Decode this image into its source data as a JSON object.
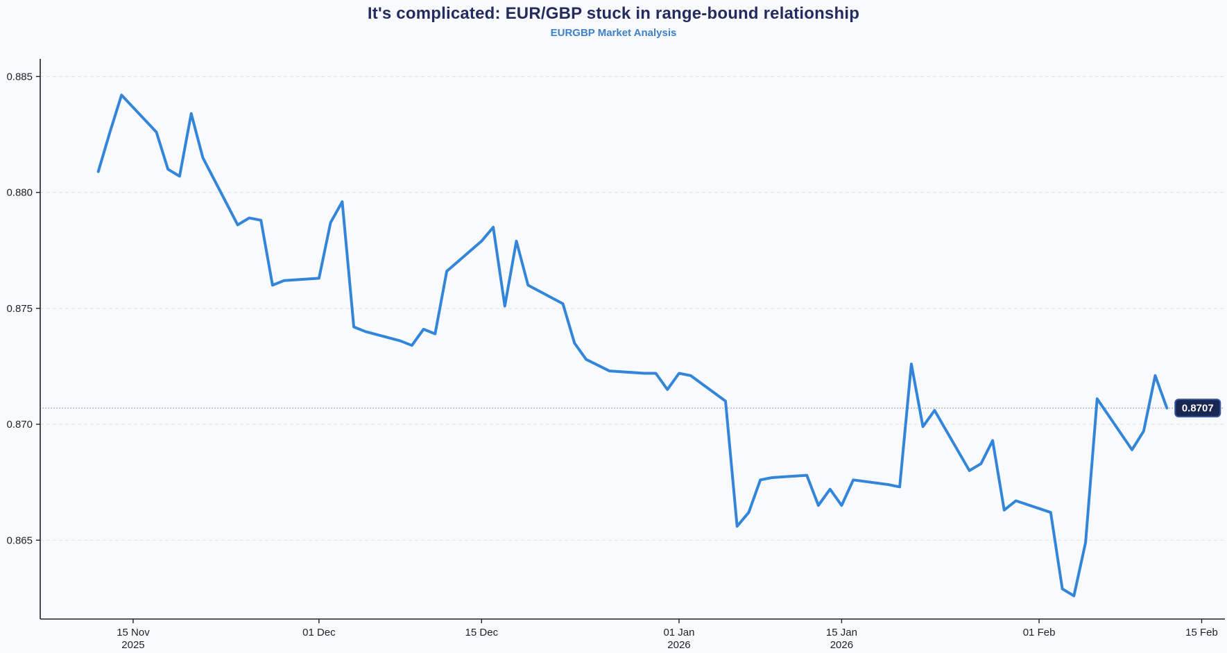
{
  "header": {
    "title": "It's complicated: EUR/GBP stuck in range-bound relationship",
    "subtitle": "EURGBP Market Analysis"
  },
  "colors": {
    "background": "#f9fafd",
    "title": "#232b5f",
    "subtitle": "#3d7fc9",
    "line": "#3285d8",
    "grid": "#dcdfe6",
    "axis": "#1c1f26",
    "last_price_line": "#9aa0ab",
    "badge_background": "#1a2750",
    "badge_border": "#37549f",
    "badge_text": "#ffffff"
  },
  "chart_data": {
    "type": "line",
    "title": "It's complicated: EUR/GBP stuck in range-bound relationship",
    "subtitle": "EURGBP Market Analysis",
    "xlabel": "",
    "ylabel": "",
    "grid": "horizontal dashed",
    "legend": "none",
    "x_range": [
      "2025-11-07",
      "2026-02-17"
    ],
    "y_range": [
      0.8616,
      0.8854
    ],
    "y_ticks": [
      {
        "v": 0.865,
        "label": "0.865"
      },
      {
        "v": 0.87,
        "label": "0.870"
      },
      {
        "v": 0.875,
        "label": "0.875"
      },
      {
        "v": 0.88,
        "label": "0.880"
      },
      {
        "v": 0.885,
        "label": "0.885"
      }
    ],
    "x_ticks": [
      {
        "date": "2025-11-15",
        "label": "15 Nov",
        "sublabel": "2025"
      },
      {
        "date": "2025-12-01",
        "label": "01 Dec",
        "sublabel": ""
      },
      {
        "date": "2025-12-15",
        "label": "15 Dec",
        "sublabel": ""
      },
      {
        "date": "2026-01-01",
        "label": "01 Jan",
        "sublabel": "2026"
      },
      {
        "date": "2026-01-15",
        "label": "15 Jan",
        "sublabel": "2026"
      },
      {
        "date": "2026-02-01",
        "label": "01 Feb",
        "sublabel": ""
      },
      {
        "date": "2026-02-15",
        "label": "15 Feb",
        "sublabel": ""
      }
    ],
    "last_value": 0.8707,
    "last_label": "0.8707",
    "series": [
      {
        "name": "EURGBP",
        "x": [
          "2025-11-12",
          "2025-11-13",
          "2025-11-14",
          "2025-11-17",
          "2025-11-18",
          "2025-11-19",
          "2025-11-20",
          "2025-11-21",
          "2025-11-24",
          "2025-11-25",
          "2025-11-26",
          "2025-11-27",
          "2025-11-28",
          "2025-12-01",
          "2025-12-02",
          "2025-12-03",
          "2025-12-04",
          "2025-12-05",
          "2025-12-08",
          "2025-12-09",
          "2025-12-10",
          "2025-12-11",
          "2025-12-12",
          "2025-12-15",
          "2025-12-16",
          "2025-12-17",
          "2025-12-18",
          "2025-12-19",
          "2025-12-22",
          "2025-12-23",
          "2025-12-24",
          "2025-12-26",
          "2025-12-29",
          "2025-12-30",
          "2025-12-31",
          "2026-01-01",
          "2026-01-02",
          "2026-01-05",
          "2026-01-06",
          "2026-01-07",
          "2026-01-08",
          "2026-01-09",
          "2026-01-12",
          "2026-01-13",
          "2026-01-14",
          "2026-01-15",
          "2026-01-16",
          "2026-01-19",
          "2026-01-20",
          "2026-01-21",
          "2026-01-22",
          "2026-01-23",
          "2026-01-26",
          "2026-01-27",
          "2026-01-28",
          "2026-01-29",
          "2026-01-30",
          "2026-02-02",
          "2026-02-03",
          "2026-02-04",
          "2026-02-05",
          "2026-02-06",
          "2026-02-09",
          "2026-02-10",
          "2026-02-11",
          "2026-02-12"
        ],
        "y": [
          0.8809,
          0.8826,
          0.8842,
          0.8826,
          0.881,
          0.8807,
          0.8834,
          0.8815,
          0.8786,
          0.8789,
          0.8788,
          0.876,
          0.8762,
          0.8763,
          0.8787,
          0.8796,
          0.8742,
          0.874,
          0.8736,
          0.8734,
          0.8741,
          0.8739,
          0.8766,
          0.8779,
          0.8785,
          0.8751,
          0.8779,
          0.876,
          0.8752,
          0.8735,
          0.8728,
          0.8723,
          0.8722,
          0.8722,
          0.8715,
          0.8722,
          0.8721,
          0.871,
          0.8656,
          0.8662,
          0.8676,
          0.8677,
          0.8678,
          0.8665,
          0.8672,
          0.8665,
          0.8676,
          0.8674,
          0.8673,
          0.8726,
          0.8699,
          0.8706,
          0.868,
          0.8683,
          0.8693,
          0.8663,
          0.8667,
          0.8662,
          0.8629,
          0.8626,
          0.8649,
          0.8711,
          0.8689,
          0.8697,
          0.8721,
          0.8707
        ]
      }
    ]
  }
}
